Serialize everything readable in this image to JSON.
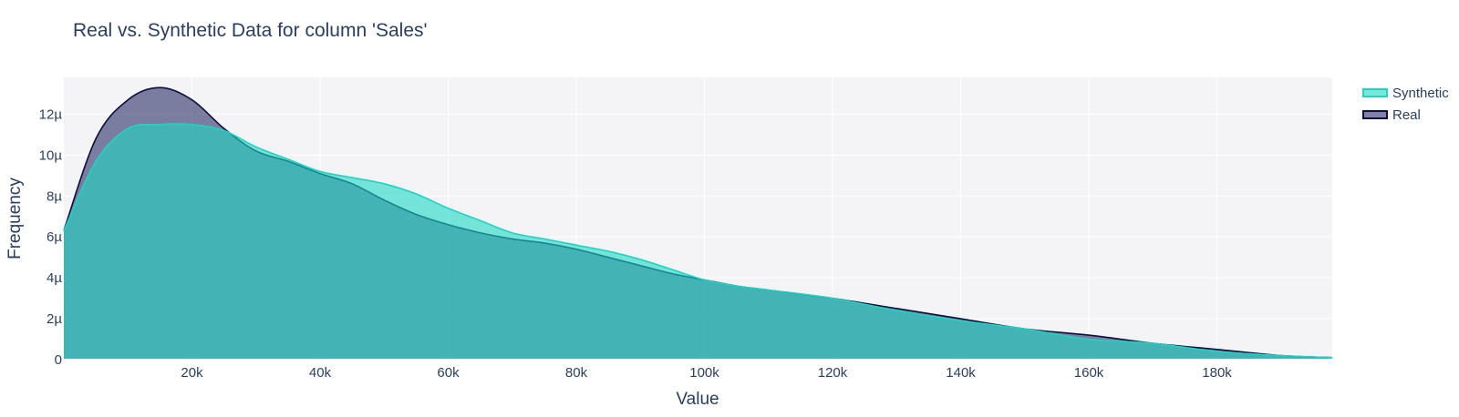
{
  "chart_data": {
    "type": "area",
    "title": "Real vs. Synthetic Data for column 'Sales'",
    "xlabel": "Value",
    "ylabel": "Frequency",
    "xlim": [
      0,
      198000
    ],
    "ylim": [
      0,
      1.38e-05
    ],
    "grid": true,
    "legend_position": "top-right",
    "x_ticks": [
      20000,
      40000,
      60000,
      80000,
      100000,
      120000,
      140000,
      160000,
      180000
    ],
    "x_tick_labels": [
      "20k",
      "40k",
      "60k",
      "80k",
      "100k",
      "120k",
      "140k",
      "160k",
      "180k"
    ],
    "y_ticks": [
      0,
      2e-06,
      4e-06,
      6e-06,
      8e-06,
      1e-05,
      1.2e-05
    ],
    "y_tick_labels": [
      "0",
      "2µ",
      "4µ",
      "6µ",
      "8µ",
      "10µ",
      "12µ"
    ],
    "series": [
      {
        "name": "Real",
        "color": "#0b0e3f",
        "fill_color": "rgba(22,27,90,0.55)",
        "x": [
          0,
          5000,
          10000,
          15000,
          20000,
          25000,
          30000,
          35000,
          40000,
          45000,
          50000,
          55000,
          60000,
          65000,
          70000,
          75000,
          80000,
          85000,
          90000,
          95000,
          100000,
          105000,
          110000,
          120000,
          130000,
          140000,
          150000,
          160000,
          170000,
          180000,
          190000,
          198000
        ],
        "values": [
          6.3e-06,
          1.08e-05,
          1.27e-05,
          1.33e-05,
          1.27e-05,
          1.13e-05,
          1.02e-05,
          9.7e-06,
          9.1e-06,
          8.6e-06,
          7.8e-06,
          7.1e-06,
          6.6e-06,
          6.2e-06,
          5.9e-06,
          5.7e-06,
          5.4e-06,
          5e-06,
          4.6e-06,
          4.2e-06,
          3.9e-06,
          3.6e-06,
          3.4e-06,
          3e-06,
          2.5e-06,
          2e-06,
          1.5e-06,
          1.2e-06,
          8e-07,
          5e-07,
          2e-07,
          1e-07
        ]
      },
      {
        "name": "Synthetic",
        "color": "#1fd3c3",
        "fill_color": "rgba(30,215,196,0.6)",
        "x": [
          0,
          5000,
          10000,
          15000,
          20000,
          25000,
          30000,
          35000,
          40000,
          45000,
          50000,
          55000,
          60000,
          65000,
          70000,
          75000,
          80000,
          85000,
          90000,
          95000,
          100000,
          105000,
          110000,
          120000,
          130000,
          140000,
          150000,
          160000,
          170000,
          180000,
          190000,
          198000
        ],
        "values": [
          6.3e-06,
          9.7e-06,
          1.13e-05,
          1.15e-05,
          1.15e-05,
          1.12e-05,
          1.04e-05,
          9.8e-06,
          9.2e-06,
          8.9e-06,
          8.6e-06,
          8.1e-06,
          7.4e-06,
          6.8e-06,
          6.2e-06,
          5.9e-06,
          5.6e-06,
          5.3e-06,
          4.9e-06,
          4.4e-06,
          3.9e-06,
          3.6e-06,
          3.4e-06,
          3e-06,
          2.4e-06,
          1.9e-06,
          1.5e-06,
          1e-06,
          8e-07,
          4e-07,
          2e-07,
          1e-07
        ]
      }
    ],
    "legend_order": [
      "Synthetic",
      "Real"
    ]
  }
}
